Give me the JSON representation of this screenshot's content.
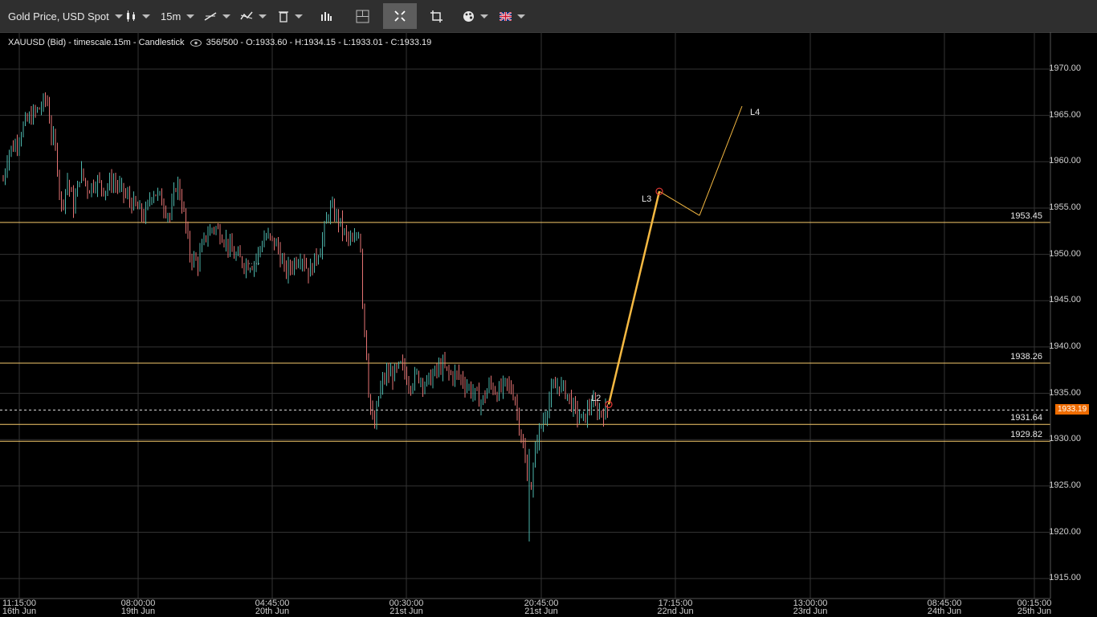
{
  "toolbar": {
    "instrument": "Gold Price, USD Spot",
    "timeframe": "15m",
    "icons": [
      "candlestick-icon",
      "draw-line-icon",
      "indicator-icon",
      "trash-icon",
      "bar-chart-icon",
      "crosshair-icon",
      "fullscreen-icon",
      "screenshot-icon",
      "palette-icon",
      "flag-uk-icon"
    ]
  },
  "info": {
    "symbol": "XAUUSD (Bid) - timescale.15m - Candlestick",
    "ohlc": "356/500 - O:1933.60 - H:1934.15 - L:1933.01 - C:1933.19"
  },
  "chart_data": {
    "type": "candlestick",
    "ylim": [
      1912.5,
      1972.5
    ],
    "yticks": [
      "1970.00",
      "1965.00",
      "1960.00",
      "1955.00",
      "1950.00",
      "1945.00",
      "1940.00",
      "1935.00",
      "1930.00",
      "1925.00",
      "1920.00",
      "1915.00"
    ],
    "xticks": [
      {
        "time": "11:15:00",
        "date": "16th Jun"
      },
      {
        "time": "08:00:00",
        "date": "19th Jun"
      },
      {
        "time": "04:45:00",
        "date": "20th Jun"
      },
      {
        "time": "00:30:00",
        "date": "21st Jun"
      },
      {
        "time": "20:45:00",
        "date": "21st Jun"
      },
      {
        "time": "17:15:00",
        "date": "22nd Jun"
      },
      {
        "time": "13:00:00",
        "date": "23rd Jun"
      },
      {
        "time": "08:45:00",
        "date": "24th Jun"
      },
      {
        "time": "00:15:00",
        "date": "25th Jun"
      }
    ],
    "close_series": [
      [
        0,
        1956
      ],
      [
        10,
        1961
      ],
      [
        20,
        1962
      ],
      [
        30,
        1964
      ],
      [
        40,
        1965
      ],
      [
        52,
        1966
      ],
      [
        58,
        1967
      ],
      [
        64,
        1963
      ],
      [
        70,
        1961
      ],
      [
        76,
        1955
      ],
      [
        84,
        1958
      ],
      [
        92,
        1955
      ],
      [
        100,
        1959
      ],
      [
        110,
        1957
      ],
      [
        120,
        1958
      ],
      [
        130,
        1957
      ],
      [
        140,
        1958
      ],
      [
        150,
        1957
      ],
      [
        160,
        1956
      ],
      [
        170,
        1955
      ],
      [
        180,
        1954
      ],
      [
        190,
        1957
      ],
      [
        200,
        1956
      ],
      [
        212,
        1954
      ],
      [
        220,
        1958
      ],
      [
        228,
        1955
      ],
      [
        236,
        1950
      ],
      [
        246,
        1949
      ],
      [
        256,
        1952
      ],
      [
        266,
        1953
      ],
      [
        278,
        1952
      ],
      [
        290,
        1950
      ],
      [
        305,
        1949
      ],
      [
        316,
        1949
      ],
      [
        330,
        1952
      ],
      [
        345,
        1951
      ],
      [
        355,
        1948
      ],
      [
        365,
        1949
      ],
      [
        375,
        1950
      ],
      [
        385,
        1948
      ],
      [
        400,
        1951
      ],
      [
        410,
        1955
      ],
      [
        420,
        1954
      ],
      [
        430,
        1952
      ],
      [
        440,
        1951
      ],
      [
        448,
        1953
      ],
      [
        452,
        1944
      ],
      [
        456,
        1940
      ],
      [
        460,
        1934
      ],
      [
        466,
        1931
      ],
      [
        472,
        1935
      ],
      [
        480,
        1937
      ],
      [
        490,
        1937
      ],
      [
        500,
        1938
      ],
      [
        510,
        1936
      ],
      [
        520,
        1937
      ],
      [
        530,
        1936
      ],
      [
        540,
        1937
      ],
      [
        550,
        1938
      ],
      [
        560,
        1937
      ],
      [
        570,
        1937
      ],
      [
        580,
        1936
      ],
      [
        590,
        1935
      ],
      [
        600,
        1934
      ],
      [
        610,
        1936
      ],
      [
        620,
        1935
      ],
      [
        630,
        1936
      ],
      [
        640,
        1935
      ],
      [
        650,
        1930
      ],
      [
        656,
        1926
      ],
      [
        662,
        1925
      ],
      [
        668,
        1930
      ],
      [
        676,
        1932
      ],
      [
        686,
        1935
      ],
      [
        696,
        1936
      ],
      [
        706,
        1935
      ],
      [
        716,
        1933
      ],
      [
        726,
        1932
      ],
      [
        736,
        1934
      ],
      [
        746,
        1933
      ],
      [
        752,
        1933
      ]
    ],
    "dotted_trail": [
      [
        310,
        1949
      ],
      [
        325,
        1949
      ]
    ],
    "horizontal_levels": [
      {
        "value": 1953.45,
        "label": "1953.45"
      },
      {
        "value": 1938.26,
        "label": "1938.26"
      },
      {
        "value": 1931.64,
        "label": "1931.64"
      },
      {
        "value": 1929.82,
        "label": "1929.82"
      }
    ],
    "current_price": {
      "value": 1933.19,
      "label": "1933.19"
    },
    "projection": [
      {
        "label": "L2",
        "value": 1933.8
      },
      {
        "label": "L3",
        "value": 1956.8
      },
      {
        "label": "",
        "value": 1954.2
      },
      {
        "label": "L4",
        "value": 1966.0
      }
    ],
    "colors": {
      "up": "#4db6ac",
      "down": "#e57373",
      "levels": "#f5c96b",
      "projection": "#f5b942",
      "grid": "#333333"
    }
  }
}
